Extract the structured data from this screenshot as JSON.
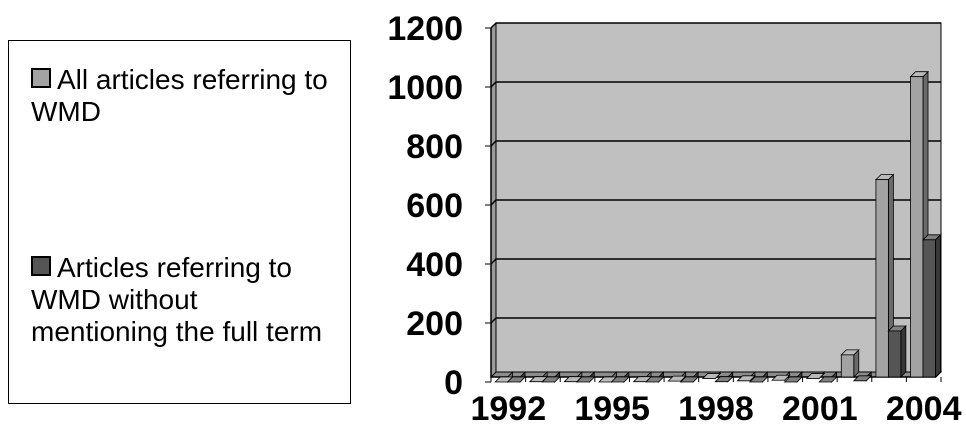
{
  "legend": {
    "items": [
      {
        "label": "All articles referring to WMD",
        "color": "#a3a3a3"
      },
      {
        "label": "Articles referring to WMD without mentioning the full term",
        "color": "#555555"
      }
    ]
  },
  "chart_data": {
    "type": "bar",
    "x": [
      1992,
      1993,
      1994,
      1995,
      1996,
      1997,
      1998,
      1999,
      2000,
      2001,
      2002,
      2003,
      2004
    ],
    "x_tick_labels": [
      "1992",
      "1995",
      "1998",
      "2001",
      "2004"
    ],
    "x_tick_years": [
      1992,
      1995,
      1998,
      2001,
      2004
    ],
    "y_ticks": [
      "0",
      "200",
      "400",
      "600",
      "800",
      "1000",
      "1200"
    ],
    "ylim": [
      0,
      1200
    ],
    "grid": true,
    "legend_position": "left",
    "series": [
      {
        "name": "All articles referring to WMD",
        "color": "#a3a3a3",
        "values": [
          0,
          1,
          1,
          0,
          1,
          3,
          12,
          4,
          6,
          12,
          92,
          686,
          1035
        ]
      },
      {
        "name": "Articles referring to WMD without mentioning the full term",
        "color": "#555555",
        "values": [
          0,
          0,
          0,
          0,
          0,
          0,
          1,
          0,
          0,
          0,
          4,
          173,
          482
        ]
      }
    ],
    "plot_background": "#c0c0c0"
  }
}
